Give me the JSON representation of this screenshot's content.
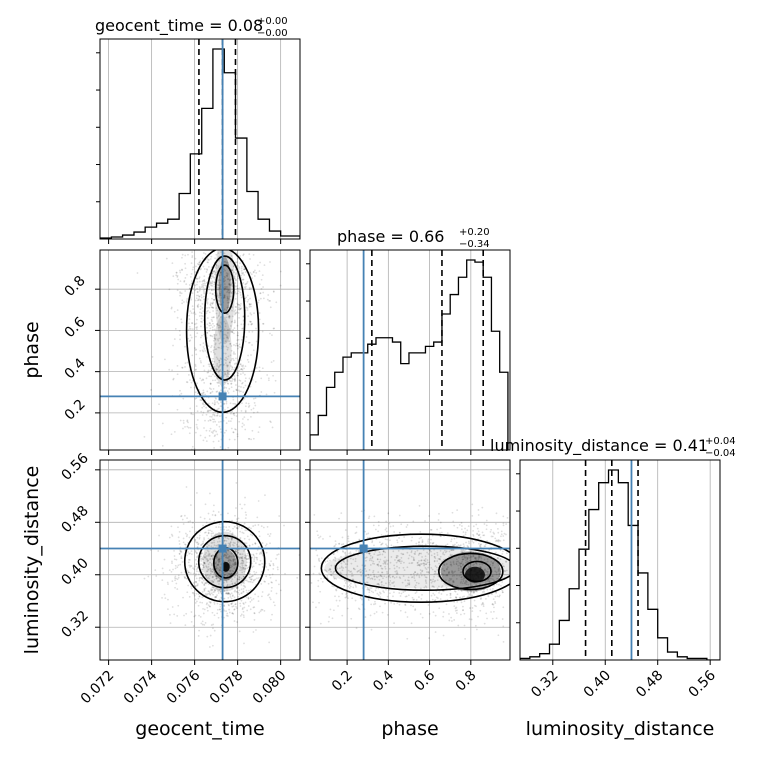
{
  "chart_data": {
    "type": "corner",
    "parameters": [
      "geocent_time",
      "phase",
      "luminosity_distance"
    ],
    "titles": [
      {
        "param": "geocent_time",
        "text": "geocent_time = 0.08",
        "sup": "+0.00",
        "sub": "−0.00"
      },
      {
        "param": "phase",
        "text": "phase = 0.66",
        "sup": "+0.20",
        "sub": "−0.34"
      },
      {
        "param": "luminosity_distance",
        "text": "luminosity_distance = 0.41",
        "sup": "+0.04",
        "sub": "−0.04"
      }
    ],
    "axis_labels": {
      "x": [
        "geocent_time",
        "phase",
        "luminosity_distance"
      ],
      "y": [
        "phase",
        "luminosity_distance"
      ]
    },
    "ranges": {
      "geocent_time": [
        0.0716,
        0.0809
      ],
      "phase": [
        0.02,
        0.99
      ],
      "luminosity_distance": [
        0.27,
        0.575
      ]
    },
    "ticks": {
      "geocent_time": [
        0.072,
        0.074,
        0.076,
        0.078,
        0.08
      ],
      "geocent_time_labels": [
        "0.072",
        "0.074",
        "0.076",
        "0.078",
        "0.080"
      ],
      "phase": [
        0.2,
        0.4,
        0.6,
        0.8
      ],
      "phase_labels": [
        "0.2",
        "0.4",
        "0.6",
        "0.8"
      ],
      "luminosity_distance": [
        0.32,
        0.4,
        0.48,
        0.56
      ],
      "luminosity_distance_labels": [
        "0.32",
        "0.40",
        "0.48",
        "0.56"
      ]
    },
    "injection": {
      "geocent_time": 0.0773,
      "phase": 0.28,
      "luminosity_distance": 0.44
    },
    "quantiles": {
      "geocent_time": [
        0.0762,
        0.0773,
        0.0779
      ],
      "phase": [
        0.32,
        0.66,
        0.86
      ],
      "luminosity_distance": [
        0.37,
        0.41,
        0.45
      ]
    },
    "histograms": {
      "geocent_time": {
        "edges": [
          0.0716,
          0.07213,
          0.07265,
          0.07318,
          0.0737,
          0.07423,
          0.07475,
          0.07528,
          0.0758,
          0.07633,
          0.07685,
          0.07738,
          0.0779,
          0.07843,
          0.07895,
          0.07948,
          0.08,
          0.0809
        ],
        "counts": [
          1,
          2,
          4,
          7,
          12,
          16,
          20,
          46,
          86,
          132,
          192,
          168,
          102,
          48,
          20,
          8,
          3
        ]
      },
      "phase": {
        "edges": [
          0.02,
          0.06,
          0.1,
          0.14,
          0.18,
          0.22,
          0.26,
          0.3,
          0.34,
          0.38,
          0.42,
          0.46,
          0.5,
          0.54,
          0.58,
          0.62,
          0.66,
          0.7,
          0.74,
          0.78,
          0.82,
          0.86,
          0.9,
          0.94,
          0.98
        ],
        "counts": [
          7,
          16,
          29,
          36,
          43,
          45,
          45,
          49,
          52,
          52,
          50,
          40,
          45,
          45,
          48,
          50,
          63,
          72,
          80,
          88,
          87,
          80,
          55,
          36
        ]
      },
      "luminosity_distance": {
        "edges": [
          0.27,
          0.285,
          0.3,
          0.315,
          0.33,
          0.345,
          0.36,
          0.375,
          0.39,
          0.405,
          0.42,
          0.435,
          0.45,
          0.465,
          0.48,
          0.495,
          0.51,
          0.525,
          0.54,
          0.555,
          0.575
        ],
        "counts": [
          1,
          2,
          4,
          10,
          25,
          45,
          70,
          95,
          112,
          120,
          112,
          85,
          55,
          32,
          14,
          5,
          2,
          1,
          1,
          0
        ]
      }
    },
    "grid": true
  }
}
